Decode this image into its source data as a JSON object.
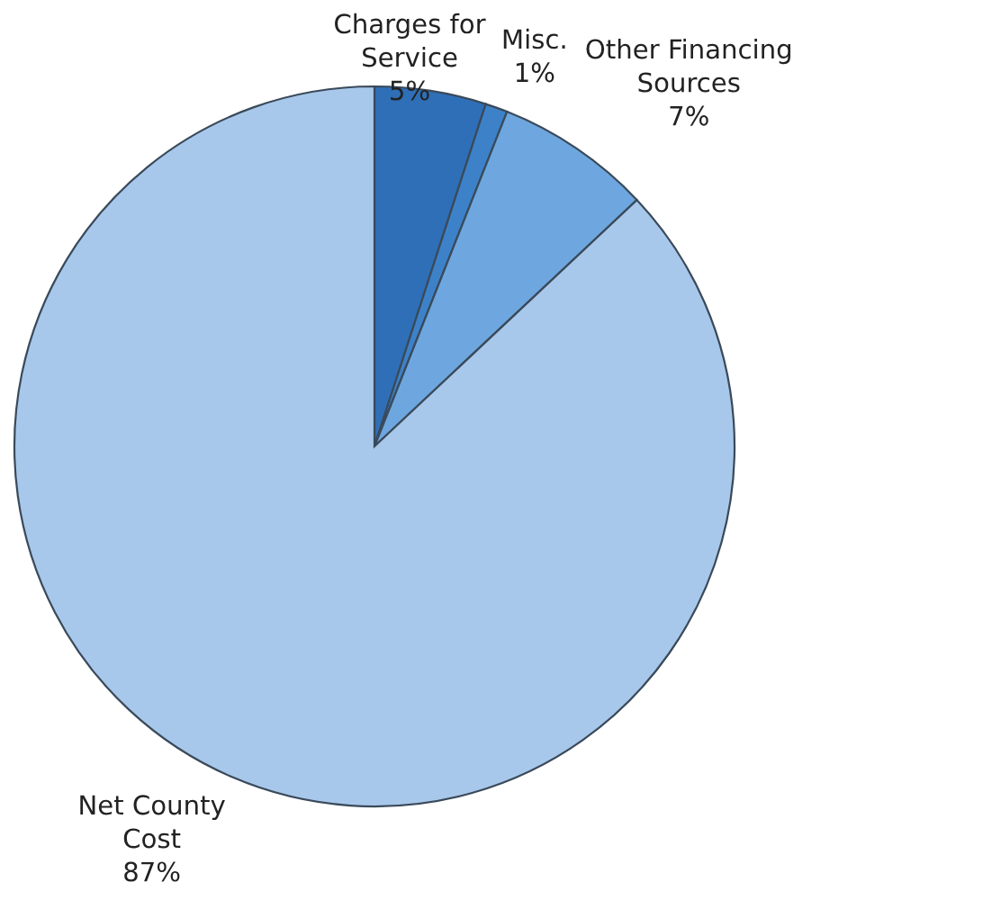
{
  "chart_data": {
    "type": "pie",
    "categories": [
      "Charges for\nService",
      "Misc.",
      "Other Financing\nSources",
      "Net County\nCost"
    ],
    "values": [
      5,
      1,
      7,
      87
    ],
    "colors": [
      "#2f6fb7",
      "#3d82c9",
      "#6ea7df",
      "#a8c8eb"
    ],
    "value_labels": [
      "5%",
      "1%",
      "7%",
      "87%"
    ],
    "legend": false
  }
}
